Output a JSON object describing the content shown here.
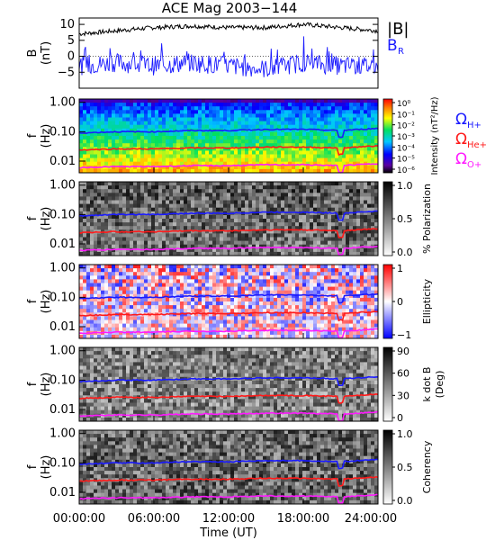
{
  "title": "ACE Mag 2003−144",
  "colors": {
    "b_total": "#000000",
    "b_r": "#1a1aff",
    "h_plus": "#1a1aff",
    "he_plus": "#ff1a1a",
    "o_plus": "#ff1aff"
  },
  "chart_data": [
    {
      "type": "line",
      "panel": "field",
      "ylabel_line1": "B",
      "ylabel_line2": "(nT)",
      "ylim": [
        -10,
        12
      ],
      "y_ticks": [
        "10",
        "5",
        "0",
        "−5"
      ],
      "legend": [
        {
          "label": "|B|"
        },
        {
          "label": "B",
          "sub": "R"
        }
      ],
      "series": [
        {
          "name": "|B|",
          "color": "#000000",
          "x": [
            0,
            3,
            6,
            9,
            12,
            15,
            18,
            21,
            24
          ],
          "values": [
            7,
            8,
            9,
            9.5,
            9,
            9,
            10,
            9,
            8
          ]
        },
        {
          "name": "B_R",
          "color": "#1a1aff",
          "x": [
            0,
            3,
            6,
            9,
            12,
            15,
            18,
            21,
            24
          ],
          "values": [
            -3,
            -2,
            -3,
            -2,
            -3,
            -4,
            -2,
            -3,
            -3
          ]
        }
      ]
    },
    {
      "type": "heatmap",
      "panel": "intensity",
      "ylabel_line1": "f",
      "ylabel_line2": "(Hz)",
      "y_ticks": [
        "1.00",
        "0.10",
        "0.01"
      ],
      "colorbar_label": "Intensity (nT²/Hz)",
      "colorbar_ticks": [
        "10⁰",
        "10⁻¹",
        "10⁻²",
        "10⁻³",
        "10⁻⁴",
        "10⁻⁵",
        "10⁻⁶"
      ],
      "legend": [
        {
          "label": "Ω",
          "sub": "H+"
        },
        {
          "label": "Ω",
          "sub": "He+"
        },
        {
          "label": "Ω",
          "sub": "O+"
        }
      ]
    },
    {
      "type": "heatmap",
      "panel": "polarization",
      "ylabel_line1": "f",
      "ylabel_line2": "(Hz)",
      "y_ticks": [
        "1.00",
        "0.10",
        "0.01"
      ],
      "colorbar_label": "% Polarization",
      "colorbar_ticks": [
        "1.0",
        "0.5",
        "0.0"
      ]
    },
    {
      "type": "heatmap",
      "panel": "ellipticity",
      "ylabel_line1": "f",
      "ylabel_line2": "(Hz)",
      "y_ticks": [
        "1.00",
        "0.10",
        "0.01"
      ],
      "colorbar_label": "Ellipticity",
      "colorbar_ticks": [
        "1",
        "0",
        "−1"
      ]
    },
    {
      "type": "heatmap",
      "panel": "kdotb",
      "ylabel_line1": "f",
      "ylabel_line2": "(Hz)",
      "y_ticks": [
        "1.00",
        "0.10",
        "0.01"
      ],
      "colorbar_label": "k dot B",
      "colorbar_label2": "(Deg)",
      "colorbar_ticks": [
        "90",
        "60",
        "30",
        "0"
      ]
    },
    {
      "type": "heatmap",
      "panel": "coherency",
      "ylabel_line1": "f",
      "ylabel_line2": "(Hz)",
      "y_ticks": [
        "1.00",
        "0.10",
        "0.01"
      ],
      "colorbar_label": "Coherency",
      "colorbar_ticks": [
        "1.0",
        "0.5",
        "0.0"
      ]
    }
  ],
  "cyclotron_lines": {
    "x": [
      0,
      3,
      6,
      9,
      12,
      15,
      18,
      21,
      24
    ],
    "h_plus": [
      0.09,
      0.1,
      0.1,
      0.11,
      0.11,
      0.12,
      0.12,
      0.11,
      0.13
    ],
    "he_plus": [
      0.024,
      0.026,
      0.026,
      0.028,
      0.028,
      0.03,
      0.03,
      0.028,
      0.033
    ],
    "o_plus": [
      0.006,
      0.0065,
      0.0065,
      0.007,
      0.007,
      0.0075,
      0.0075,
      0.007,
      0.0082
    ]
  },
  "x_axis": {
    "label": "Time (UT)",
    "ticks": [
      "00:00:00",
      "06:00:00",
      "12:00:00",
      "18:00:00",
      "24:00:00"
    ]
  }
}
